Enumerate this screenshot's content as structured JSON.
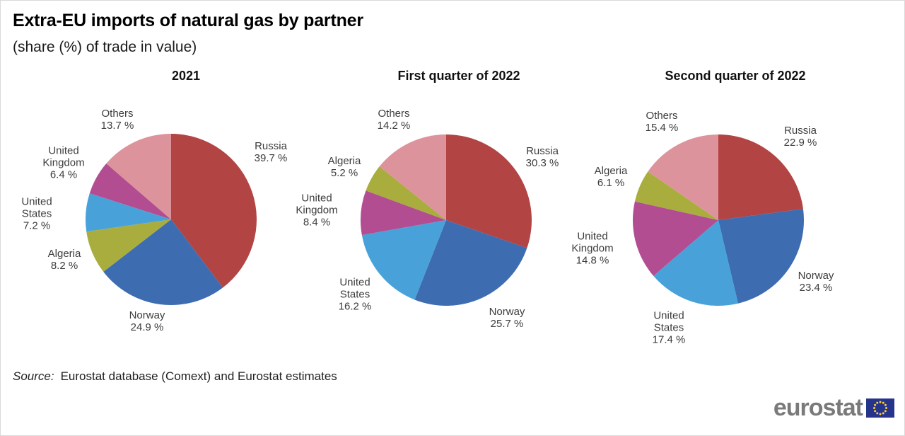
{
  "figure": {
    "title": "Extra-EU imports of natural gas by partner",
    "subtitle": "(share (%) of trade in value)"
  },
  "source": {
    "prefix": "Source:",
    "text": "Eurostat database (Comext) and Eurostat estimates"
  },
  "logo": {
    "text": "eurostat",
    "flag_color": "#27348b",
    "star_color": "#f8d12e"
  },
  "palette": {
    "russia": "#b24444",
    "norway": "#3d6cb1",
    "united_states": "#48a2d9",
    "united_kingdom": "#b34d92",
    "algeria": "#a9ad3d",
    "others": "#dd939b"
  },
  "chart_data": [
    {
      "type": "pie",
      "title": "2021",
      "start_angle": 0,
      "direction": "clockwise",
      "slices": [
        {
          "label": "Russia",
          "value": 39.7,
          "pct": "39.7 %",
          "color": "#b24444"
        },
        {
          "label": "Norway",
          "value": 24.9,
          "pct": "24.9 %",
          "color": "#3d6cb1"
        },
        {
          "label": "Algeria",
          "value": 8.2,
          "pct": "8.2 %",
          "color": "#a9ad3d"
        },
        {
          "label": "United States",
          "value": 7.2,
          "pct": "7.2 %",
          "color": "#48a2d9"
        },
        {
          "label": "United Kingdom",
          "value": 6.4,
          "pct": "6.4 %",
          "color": "#b34d92"
        },
        {
          "label": "Others",
          "value": 13.7,
          "pct": "13.7 %",
          "color": "#dd939b"
        }
      ]
    },
    {
      "type": "pie",
      "title": "First quarter of 2022",
      "start_angle": 0,
      "direction": "clockwise",
      "slices": [
        {
          "label": "Russia",
          "value": 30.3,
          "pct": "30.3 %",
          "color": "#b24444"
        },
        {
          "label": "Norway",
          "value": 25.7,
          "pct": "25.7 %",
          "color": "#3d6cb1"
        },
        {
          "label": "United States",
          "value": 16.2,
          "pct": "16.2 %",
          "color": "#48a2d9"
        },
        {
          "label": "United Kingdom",
          "value": 8.4,
          "pct": "8.4 %",
          "color": "#b34d92"
        },
        {
          "label": "Algeria",
          "value": 5.2,
          "pct": "5.2 %",
          "color": "#a9ad3d"
        },
        {
          "label": "Others",
          "value": 14.2,
          "pct": "14.2 %",
          "color": "#dd939b"
        }
      ]
    },
    {
      "type": "pie",
      "title": "Second quarter of 2022",
      "start_angle": 0,
      "direction": "clockwise",
      "slices": [
        {
          "label": "Russia",
          "value": 22.9,
          "pct": "22.9 %",
          "color": "#b24444"
        },
        {
          "label": "Norway",
          "value": 23.4,
          "pct": "23.4 %",
          "color": "#3d6cb1"
        },
        {
          "label": "United States",
          "value": 17.4,
          "pct": "17.4 %",
          "color": "#48a2d9"
        },
        {
          "label": "United Kingdom",
          "value": 14.8,
          "pct": "14.8 %",
          "color": "#b34d92"
        },
        {
          "label": "Algeria",
          "value": 6.1,
          "pct": "6.1 %",
          "color": "#a9ad3d"
        },
        {
          "label": "Others",
          "value": 15.4,
          "pct": "15.4 %",
          "color": "#dd939b"
        }
      ]
    }
  ]
}
